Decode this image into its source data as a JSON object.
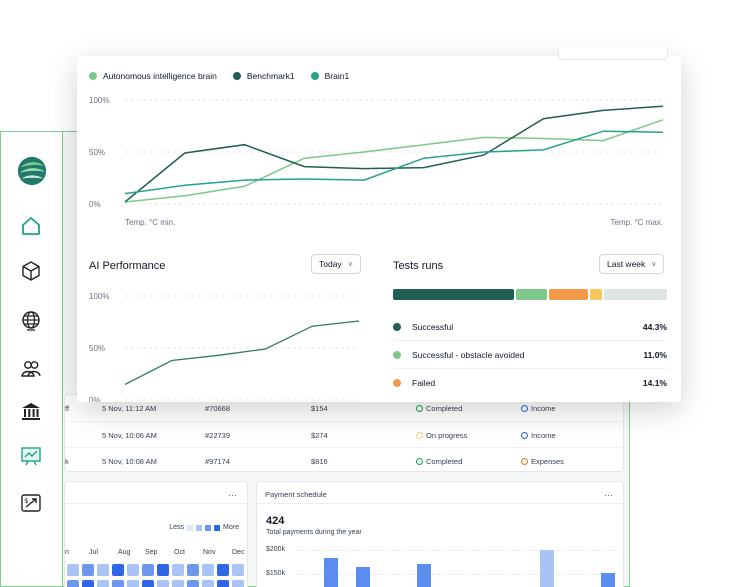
{
  "legend": [
    {
      "name": "Autonomous intelligence brain",
      "color": "#7cc98a"
    },
    {
      "name": "Benchmark1",
      "color": "#1f5f55"
    },
    {
      "name": "Brain1",
      "color": "#27a28a"
    }
  ],
  "top_chart": {
    "y_ticks": [
      "100%",
      "50%",
      "0%"
    ],
    "x_min_label": "Temp. °C min.",
    "x_max_label": "Temp. °C max."
  },
  "ai_performance": {
    "title": "AI Performance",
    "period": "Today",
    "y_ticks": [
      "100%",
      "50%",
      "0%"
    ]
  },
  "tests_runs": {
    "title": "Tests runs",
    "period": "Last week",
    "segments_color": [
      "#1f5f55",
      "#7cc98a",
      "#f2994a",
      "#f6c75b",
      "#dfe5e3"
    ],
    "rows": [
      {
        "name": "Successful",
        "pct": "44.3%",
        "color": "#1f5f55"
      },
      {
        "name": "Successful - obstacle avoided",
        "pct": "11.0%",
        "color": "#7cc98a"
      },
      {
        "name": "Failed",
        "pct": "14.1%",
        "color": "#f2994a"
      }
    ]
  },
  "transactions": [
    {
      "prefix": "ff",
      "date": "5 Nov, 11:12 AM",
      "id": "#70668",
      "amount": "$154",
      "status": "Completed",
      "type": "Income"
    },
    {
      "prefix": "",
      "date": "5 Nov, 10:06 AM",
      "id": "#22739",
      "amount": "$274",
      "status": "On progress",
      "type": "Income"
    },
    {
      "prefix": "k",
      "date": "5 Nov, 10:08 AM",
      "id": "#97174",
      "amount": "$816",
      "status": "Completed",
      "type": "Expenses"
    }
  ],
  "activity_panel": {
    "less": "Less",
    "more": "More",
    "months": [
      "n",
      "Jul",
      "Aug",
      "Sep",
      "Oct",
      "Nov",
      "Dec"
    ]
  },
  "payment_schedule": {
    "title": "Payment schedule",
    "count": "424",
    "subtitle": "Total payments during the year",
    "y_ticks": [
      "$200k",
      "$150k"
    ]
  },
  "chart_data": [
    {
      "type": "line",
      "x": [
        0,
        1,
        2,
        3,
        4,
        5,
        6,
        7,
        8,
        9
      ],
      "ylim": [
        0,
        100
      ],
      "xlabel": "",
      "ylabel": "",
      "series": [
        {
          "name": "Autonomous intelligence brain",
          "values": [
            2,
            8,
            17,
            44,
            50,
            57,
            64,
            63,
            61,
            81
          ]
        },
        {
          "name": "Benchmark1",
          "values": [
            2,
            49,
            57,
            36,
            34,
            35,
            47,
            82,
            90,
            94
          ]
        },
        {
          "name": "Brain1",
          "values": [
            10,
            18,
            23,
            24,
            23,
            44,
            50,
            52,
            70,
            69
          ]
        }
      ]
    },
    {
      "type": "line",
      "x": [
        0,
        1,
        2,
        3,
        4,
        5
      ],
      "ylim": [
        0,
        100
      ],
      "series": [
        {
          "values": [
            15,
            38,
            43,
            49,
            71,
            76
          ]
        }
      ]
    }
  ]
}
